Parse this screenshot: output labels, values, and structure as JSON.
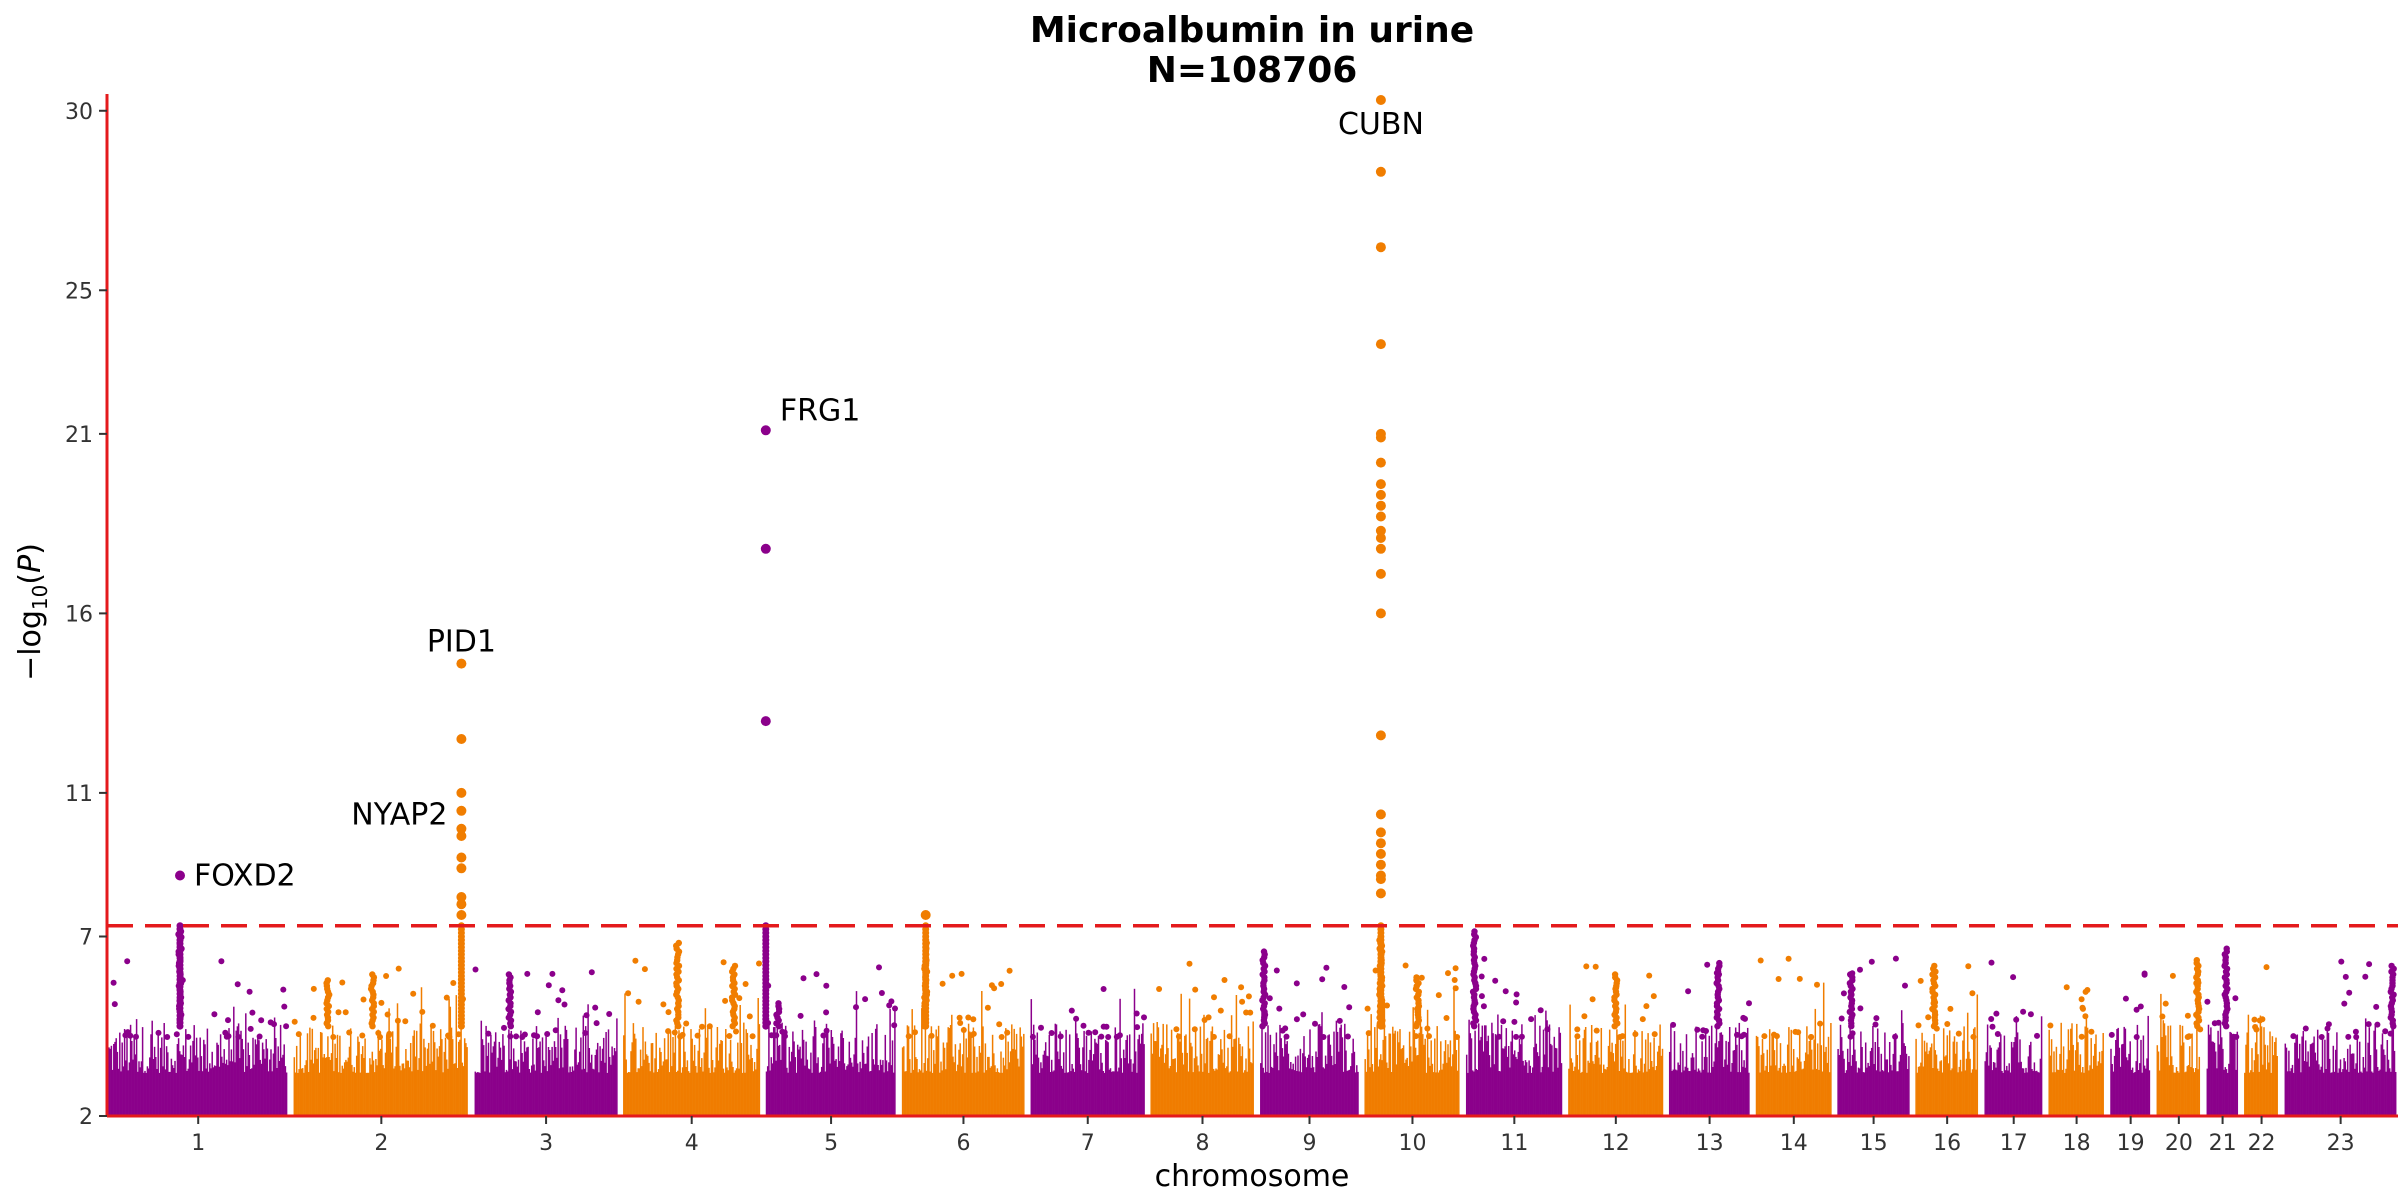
{
  "chart_data": {
    "type": "scatter",
    "title": "Microalbumin in urine",
    "subtitle": "N=108706",
    "xlabel": "chromosome",
    "ylabel": "−log10(P)",
    "ylim": [
      2,
      30.3
    ],
    "yticks": [
      2,
      7,
      11,
      16,
      21,
      25,
      30
    ],
    "significance_threshold": 7.3,
    "threshold_color": "#e41a1c",
    "axis_color": "#e41a1c",
    "colors": {
      "odd": "#8b008b",
      "even": "#f07d00"
    },
    "chromosomes": [
      {
        "label": "1",
        "size": 248
      },
      {
        "label": "2",
        "size": 242
      },
      {
        "label": "3",
        "size": 198
      },
      {
        "label": "4",
        "size": 190
      },
      {
        "label": "5",
        "size": 181
      },
      {
        "label": "6",
        "size": 171
      },
      {
        "label": "7",
        "size": 159
      },
      {
        "label": "8",
        "size": 145
      },
      {
        "label": "9",
        "size": 138
      },
      {
        "label": "10",
        "size": 134
      },
      {
        "label": "11",
        "size": 135
      },
      {
        "label": "12",
        "size": 133
      },
      {
        "label": "13",
        "size": 114
      },
      {
        "label": "14",
        "size": 107
      },
      {
        "label": "15",
        "size": 102
      },
      {
        "label": "16",
        "size": 90
      },
      {
        "label": "17",
        "size": 83
      },
      {
        "label": "18",
        "size": 80
      },
      {
        "label": "19",
        "size": 59
      },
      {
        "label": "20",
        "size": 64
      },
      {
        "label": "21",
        "size": 47
      },
      {
        "label": "22",
        "size": 51
      },
      {
        "label": "23",
        "size": 156
      }
    ],
    "hits": [
      {
        "chr": "1",
        "pos_frac": 0.4,
        "values": [
          8.7
        ]
      },
      {
        "chr": "2",
        "pos_frac": 0.95,
        "values": [
          14.6,
          12.5,
          11.0,
          10.5,
          10.0,
          9.8,
          9.2,
          8.9,
          8.1,
          7.9,
          7.6
        ]
      },
      {
        "chr": "5",
        "pos_frac": 0.01,
        "values": [
          21.1,
          17.8,
          13.0
        ]
      },
      {
        "chr": "6",
        "pos_frac": 0.2,
        "values": [
          7.6
        ]
      },
      {
        "chr": "10",
        "pos_frac": 0.18,
        "values": [
          30.3,
          28.3,
          26.2,
          23.5,
          21.0,
          20.9,
          20.2,
          19.6,
          19.3,
          19.0,
          18.7,
          18.3,
          18.1,
          17.8,
          17.1,
          16.0,
          12.6,
          10.4,
          9.9,
          9.6,
          9.3,
          9.0,
          8.7,
          8.6,
          8.2
        ]
      }
    ],
    "peaks": [
      {
        "chr": "1",
        "pos_frac": 0.4,
        "height": 7.3
      },
      {
        "chr": "2",
        "pos_frac": 0.45,
        "height": 6.0
      },
      {
        "chr": "2",
        "pos_frac": 0.2,
        "height": 5.8
      },
      {
        "chr": "3",
        "pos_frac": 0.25,
        "height": 6.0
      },
      {
        "chr": "4",
        "pos_frac": 0.4,
        "height": 6.9
      },
      {
        "chr": "4",
        "pos_frac": 0.8,
        "height": 6.2
      },
      {
        "chr": "5",
        "pos_frac": 0.1,
        "height": 5.2
      },
      {
        "chr": "6",
        "pos_frac": 0.2,
        "height": 6.9
      },
      {
        "chr": "9",
        "pos_frac": 0.05,
        "height": 6.6
      },
      {
        "chr": "10",
        "pos_frac": 0.18,
        "height": 7.0
      },
      {
        "chr": "10",
        "pos_frac": 0.55,
        "height": 5.9
      },
      {
        "chr": "11",
        "pos_frac": 0.1,
        "height": 7.2
      },
      {
        "chr": "12",
        "pos_frac": 0.5,
        "height": 6.0
      },
      {
        "chr": "13",
        "pos_frac": 0.6,
        "height": 6.3
      },
      {
        "chr": "15",
        "pos_frac": 0.2,
        "height": 6.0
      },
      {
        "chr": "16",
        "pos_frac": 0.3,
        "height": 6.2
      },
      {
        "chr": "20",
        "pos_frac": 0.9,
        "height": 6.4
      },
      {
        "chr": "21",
        "pos_frac": 0.6,
        "height": 6.7
      },
      {
        "chr": "23",
        "pos_frac": 0.95,
        "height": 6.2
      }
    ],
    "annotations": [
      {
        "label": "FOXD2",
        "chr": "1",
        "pos_frac": 0.4,
        "y": 8.7,
        "anchor": "start"
      },
      {
        "label": "NYAP2",
        "chr": "2",
        "pos_frac": 0.95,
        "y": 10.4,
        "anchor": "end"
      },
      {
        "label": "PID1",
        "chr": "2",
        "pos_frac": 0.95,
        "y": 14.6,
        "anchor": "middle"
      },
      {
        "label": "FRG1",
        "chr": "5",
        "pos_frac": 0.01,
        "y": 21.1,
        "anchor": "start"
      },
      {
        "label": "CUBN",
        "chr": "10",
        "pos_frac": 0.18,
        "y": 30.3,
        "anchor": "middle"
      }
    ]
  }
}
